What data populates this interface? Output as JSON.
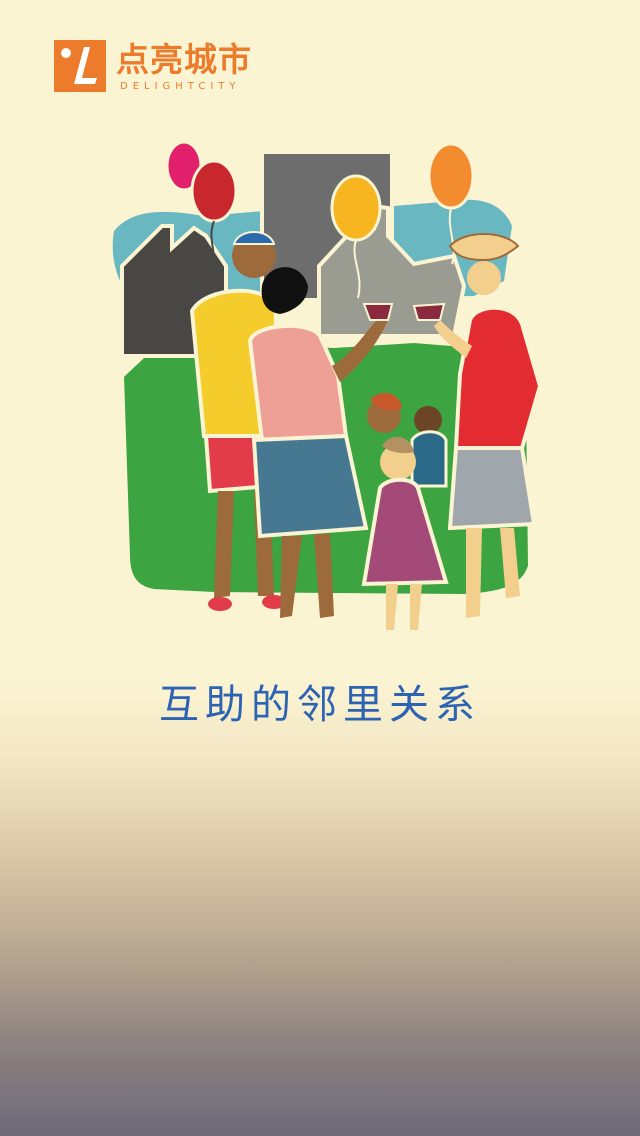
{
  "brand": {
    "name_cn": "点亮城市",
    "name_en": "DELIGHTCITY",
    "color": "#ec7b2c"
  },
  "illustration": {
    "subject": "neighbors-gathering-icon"
  },
  "slogan": {
    "text": "互助的邻里关系",
    "color": "#2c63b3"
  }
}
